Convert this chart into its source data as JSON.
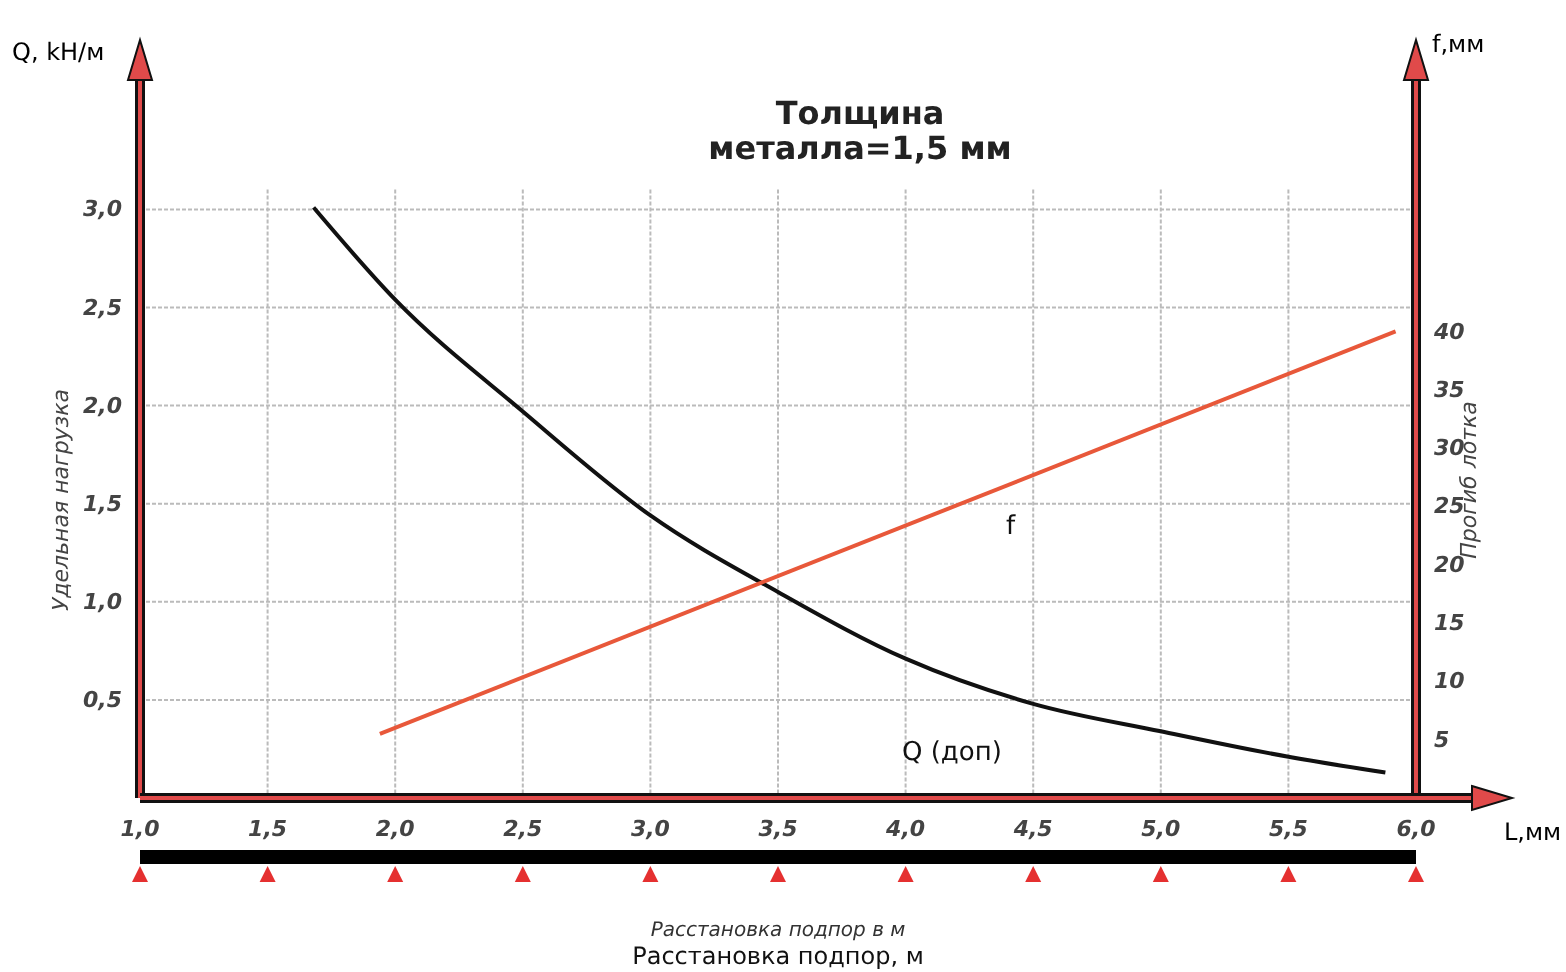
{
  "chart_data": {
    "type": "line",
    "title": "Толщина\nметалла=1,5 мм",
    "xlabel": "L,мм",
    "annotations": [
      "Удельная нагрузка",
      "Q, kH/м",
      "f,мм",
      "Прогиб лотка",
      "Расстановка подпор в м",
      "Расстановка подпор, м"
    ],
    "xlim": [
      1,
      6
    ],
    "xticks": [
      {
        "value": 1,
        "label": "1,0"
      },
      {
        "value": 1.5,
        "label": "1,5"
      },
      {
        "value": 2,
        "label": "2,0"
      },
      {
        "value": 2.5,
        "label": "2,5"
      },
      {
        "value": 3,
        "label": "3,0"
      },
      {
        "value": 3.5,
        "label": "3,5"
      },
      {
        "value": 4,
        "label": "4,0"
      },
      {
        "value": 4.5,
        "label": "4,5"
      },
      {
        "value": 5,
        "label": "5,0"
      },
      {
        "value": 5.5,
        "label": "5,5"
      },
      {
        "value": 6,
        "label": "6,0"
      }
    ],
    "ylim": [
      0,
      3.68
    ],
    "yticks": [
      {
        "value": 0.5,
        "label": "0,5"
      },
      {
        "value": 1,
        "label": "1,0"
      },
      {
        "value": 1.5,
        "label": "1,5"
      },
      {
        "value": 2,
        "label": "2,0"
      },
      {
        "value": 2.5,
        "label": "2,5"
      },
      {
        "value": 3,
        "label": "3,0"
      }
    ],
    "y2lim": [
      0,
      61.9
    ],
    "y2ticks": [
      5,
      10,
      15,
      20,
      25,
      30,
      35,
      40
    ],
    "grid": true,
    "series": [
      {
        "name": "Q (доп)",
        "color": "#111111",
        "x": [
          1.68,
          2,
          2.5,
          3,
          3.5,
          4,
          4.5,
          5,
          5.5,
          5.88
        ],
        "values": [
          3.01,
          2.54,
          1.97,
          1.44,
          1.05,
          0.71,
          0.48,
          0.34,
          0.21,
          0.13
        ]
      },
      {
        "name": "f",
        "color": "#e8583a",
        "axis": "y2",
        "x": [
          1.94,
          5.92
        ],
        "values": [
          5.5,
          40
        ]
      }
    ]
  }
}
